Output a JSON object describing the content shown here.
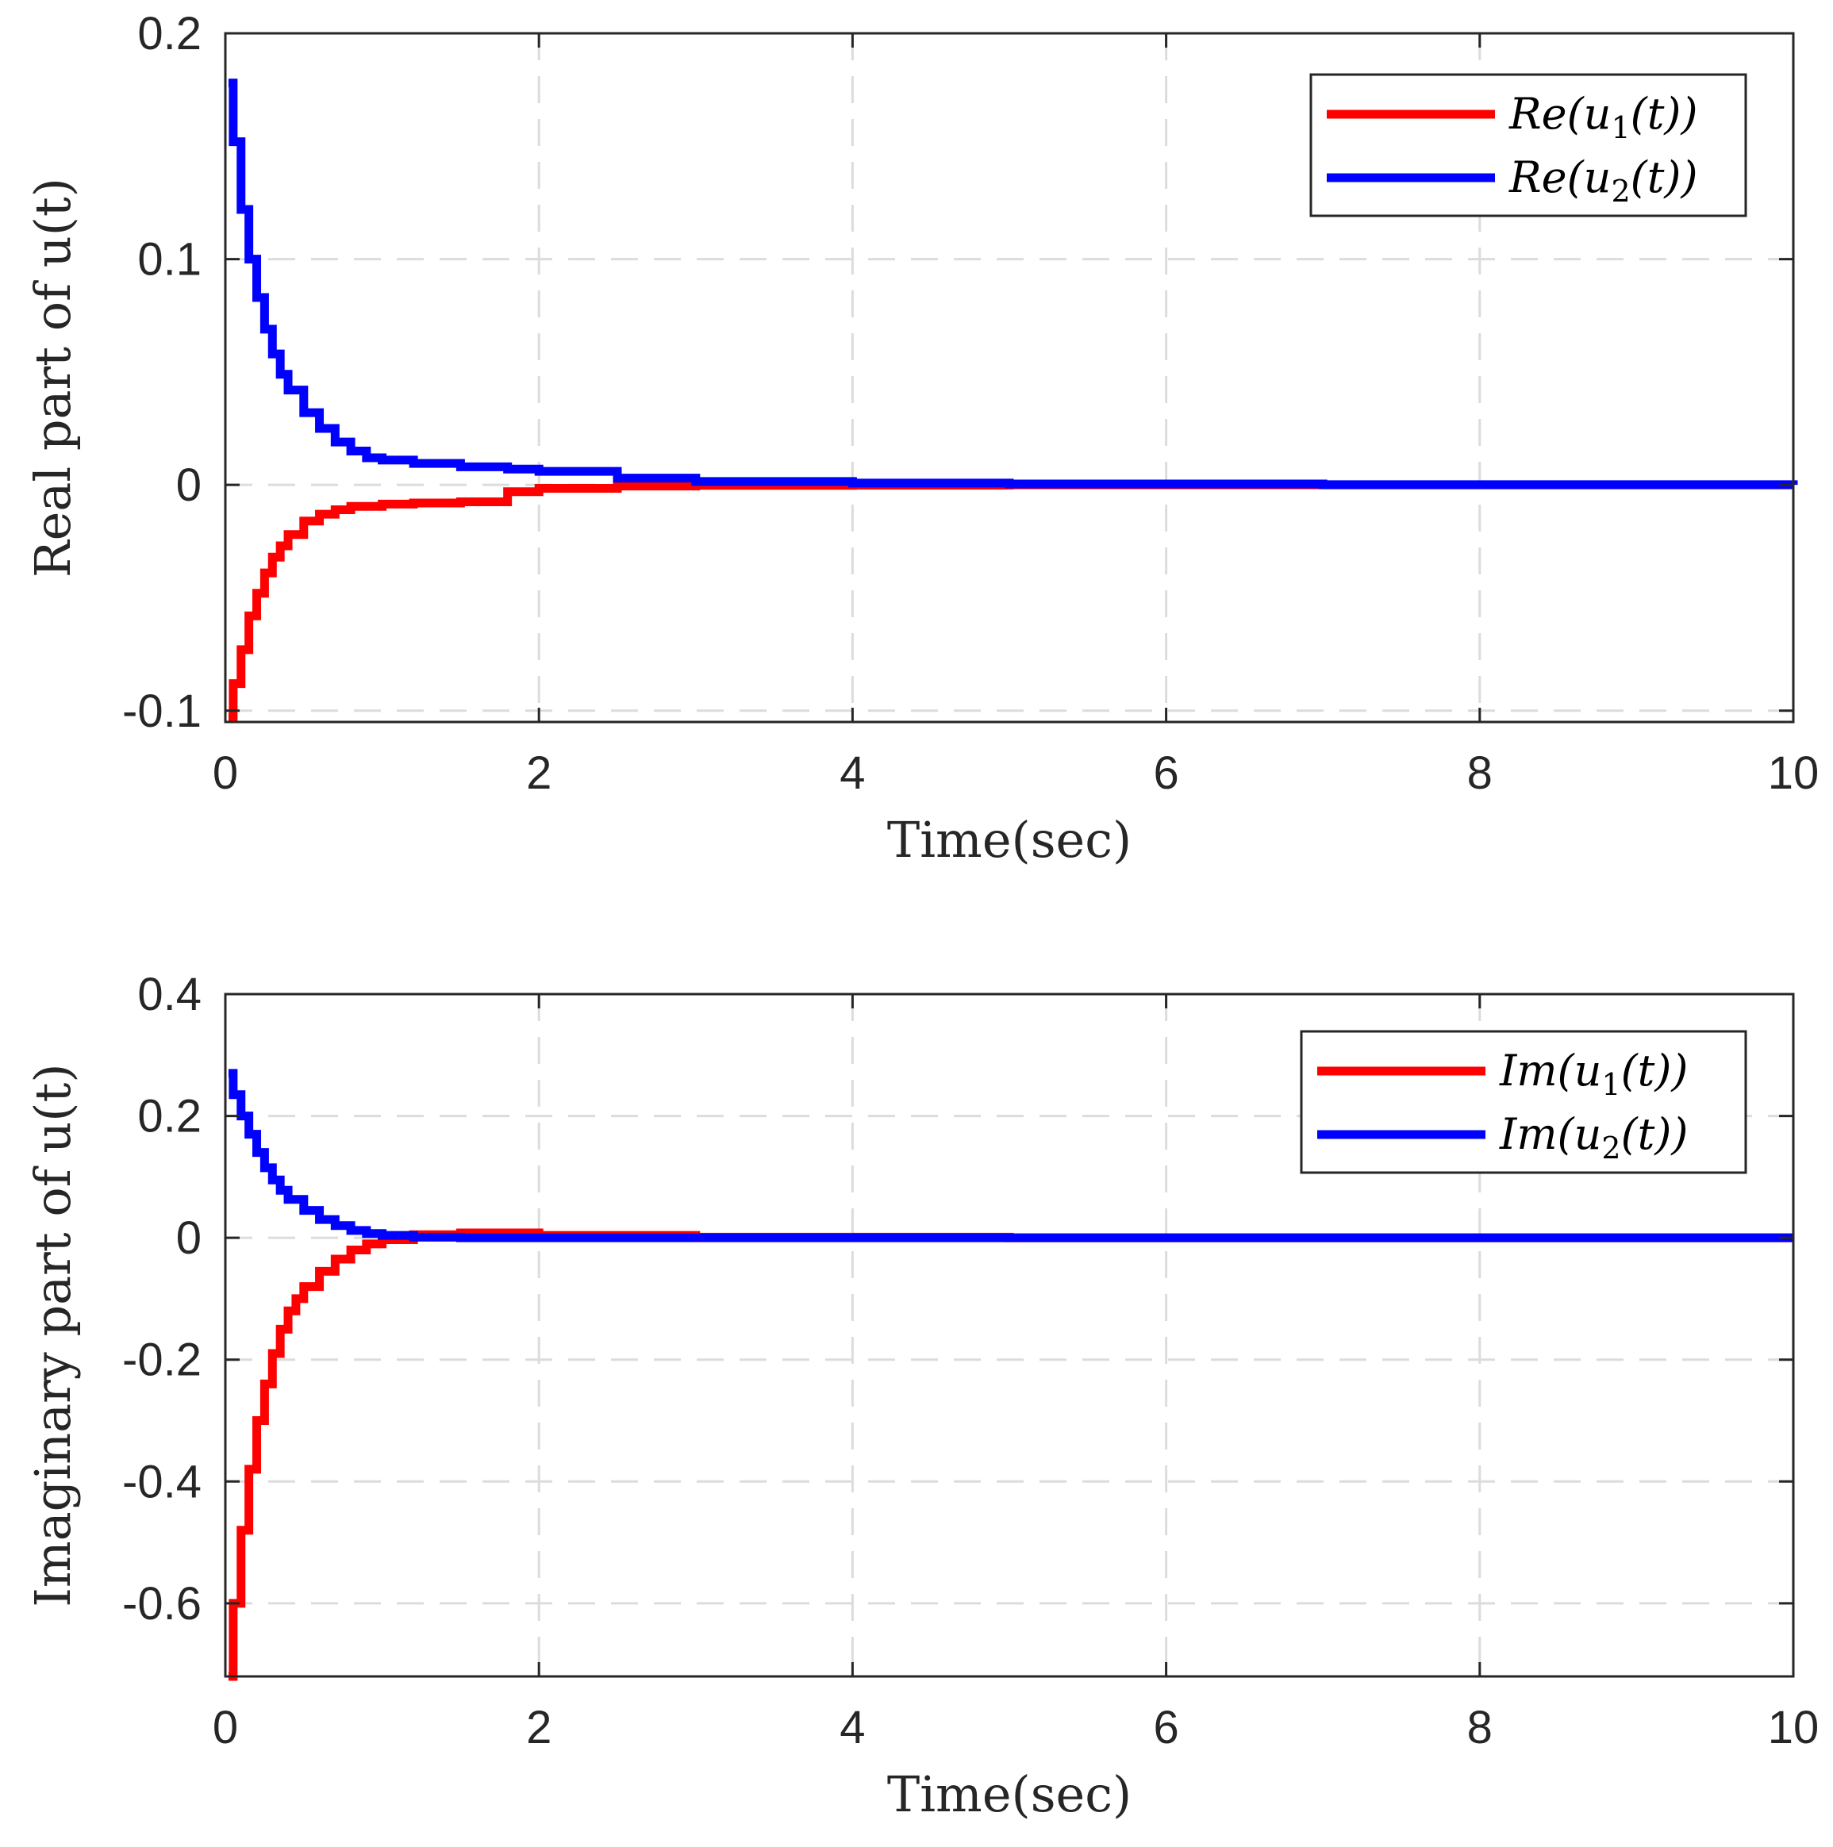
{
  "chart_data": [
    {
      "type": "line",
      "title": "",
      "xlabel": "Time(sec)",
      "ylabel": "Real part of u(t)",
      "xlim": [
        0,
        10
      ],
      "ylim": [
        -0.105,
        0.2
      ],
      "xticks": [
        0,
        2,
        4,
        6,
        8,
        10
      ],
      "xtick_labels": [
        "0",
        "2",
        "4",
        "6",
        "8",
        "10"
      ],
      "yticks": [
        -0.1,
        0,
        0.1,
        0.2
      ],
      "ytick_labels": [
        "-0.1",
        "0",
        "0.1",
        "0.2"
      ],
      "grid": true,
      "legend_position": "top-right",
      "series": [
        {
          "name": "Re(u1(t))",
          "color": "#ff0000",
          "x": [
            0.02,
            0.05,
            0.1,
            0.15,
            0.2,
            0.25,
            0.3,
            0.35,
            0.4,
            0.5,
            0.6,
            0.7,
            0.8,
            1.0,
            1.2,
            1.5,
            1.8,
            2.0,
            2.5,
            3.0,
            4.0,
            5.0,
            7.0,
            10.0
          ],
          "values": [
            -0.103,
            -0.088,
            -0.073,
            -0.058,
            -0.048,
            -0.039,
            -0.032,
            -0.027,
            -0.022,
            -0.016,
            -0.013,
            -0.011,
            -0.0095,
            -0.0085,
            -0.008,
            -0.0075,
            -0.003,
            -0.0015,
            -0.0005,
            -0.0002,
            -0.0001,
            0,
            0,
            0
          ]
        },
        {
          "name": "Re(u2(t))",
          "color": "#0000ff",
          "x": [
            0.02,
            0.05,
            0.1,
            0.15,
            0.2,
            0.25,
            0.3,
            0.35,
            0.4,
            0.5,
            0.6,
            0.7,
            0.8,
            0.9,
            1.0,
            1.2,
            1.5,
            1.8,
            2.0,
            2.5,
            3.0,
            4.0,
            5.0,
            7.0,
            10.0
          ],
          "values": [
            0.178,
            0.152,
            0.122,
            0.1,
            0.083,
            0.069,
            0.058,
            0.049,
            0.042,
            0.032,
            0.025,
            0.019,
            0.015,
            0.012,
            0.011,
            0.0095,
            0.008,
            0.007,
            0.006,
            0.003,
            0.0015,
            0.0008,
            0.0004,
            0.0001,
            0
          ]
        }
      ]
    },
    {
      "type": "line",
      "title": "",
      "xlabel": "Time(sec)",
      "ylabel": "Imaginary part of u(t)",
      "xlim": [
        0,
        10
      ],
      "ylim": [
        -0.72,
        0.4
      ],
      "xticks": [
        0,
        2,
        4,
        6,
        8,
        10
      ],
      "xtick_labels": [
        "0",
        "2",
        "4",
        "6",
        "8",
        "10"
      ],
      "yticks": [
        -0.6,
        -0.4,
        -0.2,
        0,
        0.2,
        0.4
      ],
      "ytick_labels": [
        "-0.6",
        "-0.4",
        "-0.2",
        "0",
        "0.2",
        "0.4"
      ],
      "grid": true,
      "legend_position": "top-right",
      "series": [
        {
          "name": "Im(u1(t))",
          "color": "#ff0000",
          "x": [
            0.02,
            0.05,
            0.1,
            0.15,
            0.2,
            0.25,
            0.3,
            0.35,
            0.4,
            0.45,
            0.5,
            0.6,
            0.7,
            0.8,
            0.9,
            1.0,
            1.2,
            1.5,
            2.0,
            3.0,
            5.0,
            10.0
          ],
          "values": [
            -0.72,
            -0.6,
            -0.48,
            -0.38,
            -0.3,
            -0.24,
            -0.19,
            -0.15,
            -0.12,
            -0.1,
            -0.08,
            -0.055,
            -0.035,
            -0.02,
            -0.01,
            -0.003,
            0.005,
            0.008,
            0.004,
            0.001,
            0,
            0
          ]
        },
        {
          "name": "Im(u2(t))",
          "color": "#0000ff",
          "x": [
            0.02,
            0.05,
            0.1,
            0.15,
            0.2,
            0.25,
            0.3,
            0.35,
            0.4,
            0.5,
            0.6,
            0.7,
            0.8,
            0.9,
            1.0,
            1.2,
            1.5,
            2.0,
            3.0,
            5.0,
            10.0
          ],
          "values": [
            0.27,
            0.235,
            0.2,
            0.17,
            0.14,
            0.115,
            0.095,
            0.078,
            0.063,
            0.045,
            0.03,
            0.02,
            0.012,
            0.007,
            0.004,
            0.001,
            0,
            0,
            0,
            0,
            0
          ]
        }
      ]
    }
  ]
}
